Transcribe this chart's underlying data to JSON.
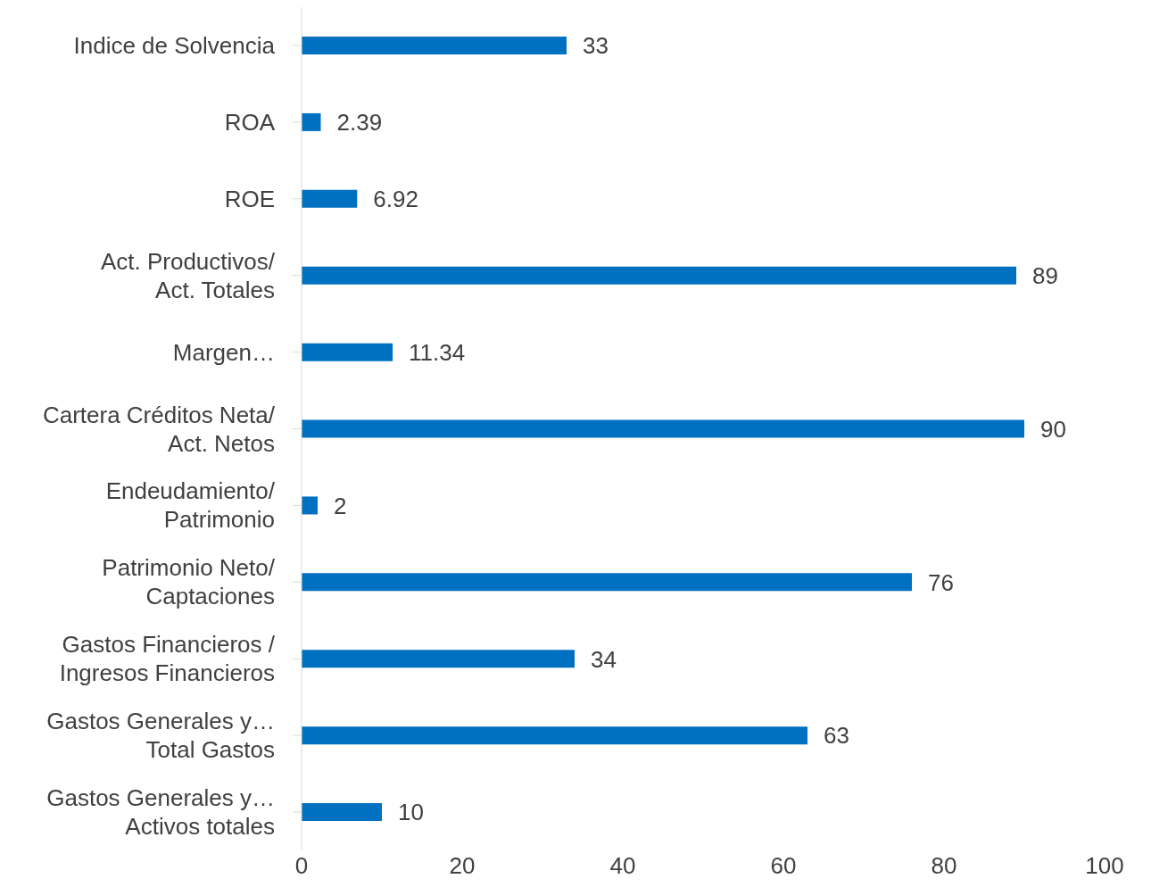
{
  "chart_data": {
    "type": "bar",
    "orientation": "horizontal",
    "categories": [
      "Indice de Solvencia",
      "ROA",
      "ROE",
      "Act. Productivos/\nAct. Totales",
      "Margen…",
      "Cartera Créditos Neta/\nAct. Netos",
      "Endeudamiento/\nPatrimonio",
      "Patrimonio Neto/\nCaptaciones",
      "Gastos Financieros /\nIngresos Financieros",
      "Gastos Generales y…\nTotal Gastos",
      "Gastos Generales y…\nActivos totales"
    ],
    "series": [
      {
        "color": "#0070c0",
        "values": [
          33,
          2.39,
          6.92,
          89,
          11.34,
          90,
          2,
          76,
          34,
          63,
          10
        ]
      }
    ],
    "xlim": [
      0,
      100
    ],
    "xticks": [
      0,
      20,
      40,
      60,
      80,
      100
    ],
    "grid": false,
    "data_labels": true
  }
}
